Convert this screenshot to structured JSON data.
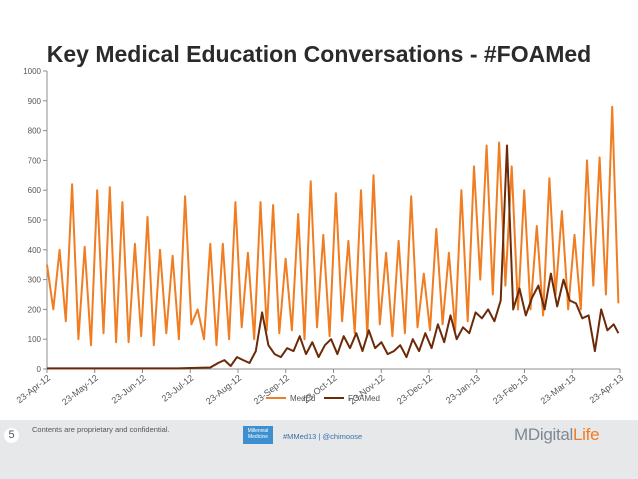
{
  "slide": {
    "title": "Key Medical Education Conversations - #FOAMed",
    "slide_number": "5"
  },
  "footer": {
    "disclaimer": "Contents are proprietary and confidential.",
    "badge_text": "Millennial Medicine",
    "hashtag": "#MMed13 | @chimoose",
    "logo_main": "MDigital",
    "logo_accent": "Life"
  },
  "chart_data": {
    "type": "line",
    "title": "Key Medical Education Conversations - #FOAMed",
    "xlabel": "",
    "ylabel": "",
    "ylim": [
      0,
      1000
    ],
    "yticks": [
      0,
      100,
      200,
      300,
      400,
      500,
      600,
      700,
      800,
      900,
      1000
    ],
    "x_range": [
      "2012-04-23",
      "2013-04-23"
    ],
    "x_tick_labels": [
      "23-Apr-12",
      "23-May-12",
      "23-Jun-12",
      "23-Jul-12",
      "23-Aug-12",
      "23-Sep-12",
      "23-Oct-12",
      "23-Nov-12",
      "23-Dec-12",
      "23-Jan-13",
      "23-Feb-13",
      "23-Mar-13",
      "23-Apr-13"
    ],
    "grid": false,
    "legend": "bottom",
    "series": [
      {
        "name": "MedEd",
        "color": "#f07d22",
        "x": [
          "2012-04-23",
          "2012-04-27",
          "2012-05-01",
          "2012-05-05",
          "2012-05-09",
          "2012-05-13",
          "2012-05-17",
          "2012-05-21",
          "2012-05-25",
          "2012-05-29",
          "2012-06-02",
          "2012-06-06",
          "2012-06-10",
          "2012-06-14",
          "2012-06-18",
          "2012-06-22",
          "2012-06-26",
          "2012-06-30",
          "2012-07-04",
          "2012-07-08",
          "2012-07-12",
          "2012-07-16",
          "2012-07-20",
          "2012-07-24",
          "2012-07-28",
          "2012-08-01",
          "2012-08-05",
          "2012-08-09",
          "2012-08-13",
          "2012-08-17",
          "2012-08-21",
          "2012-08-25",
          "2012-08-29",
          "2012-09-02",
          "2012-09-06",
          "2012-09-10",
          "2012-09-14",
          "2012-09-18",
          "2012-09-22",
          "2012-09-26",
          "2012-09-30",
          "2012-10-04",
          "2012-10-08",
          "2012-10-12",
          "2012-10-16",
          "2012-10-20",
          "2012-10-24",
          "2012-10-28",
          "2012-11-01",
          "2012-11-05",
          "2012-11-09",
          "2012-11-13",
          "2012-11-17",
          "2012-11-21",
          "2012-11-25",
          "2012-11-29",
          "2012-12-03",
          "2012-12-07",
          "2012-12-11",
          "2012-12-15",
          "2012-12-19",
          "2012-12-23",
          "2012-12-27",
          "2012-12-31",
          "2013-01-04",
          "2013-01-08",
          "2013-01-12",
          "2013-01-16",
          "2013-01-20",
          "2013-01-24",
          "2013-01-28",
          "2013-02-01",
          "2013-02-05",
          "2013-02-09",
          "2013-02-13",
          "2013-02-17",
          "2013-02-21",
          "2013-02-25",
          "2013-03-01",
          "2013-03-05",
          "2013-03-09",
          "2013-03-13",
          "2013-03-17",
          "2013-03-21",
          "2013-03-25",
          "2013-03-29",
          "2013-04-02",
          "2013-04-06",
          "2013-04-10",
          "2013-04-14",
          "2013-04-18",
          "2013-04-22"
        ],
        "values": [
          350,
          200,
          400,
          160,
          620,
          100,
          410,
          80,
          600,
          120,
          610,
          90,
          560,
          90,
          420,
          110,
          510,
          80,
          400,
          120,
          380,
          100,
          580,
          150,
          200,
          100,
          420,
          80,
          420,
          100,
          560,
          140,
          390,
          100,
          560,
          130,
          550,
          120,
          370,
          130,
          520,
          100,
          630,
          140,
          450,
          110,
          590,
          160,
          430,
          120,
          600,
          110,
          650,
          150,
          390,
          110,
          430,
          120,
          580,
          140,
          320,
          130,
          470,
          150,
          390,
          130,
          600,
          160,
          680,
          300,
          750,
          250,
          760,
          280,
          680,
          200,
          600,
          200,
          480,
          180,
          640,
          250,
          530,
          200,
          450,
          200,
          700,
          280,
          710,
          250,
          880,
          220
        ]
      },
      {
        "name": "FOAMed",
        "color": "#6b2a08",
        "x": [
          "2012-04-23",
          "2012-05-15",
          "2012-06-15",
          "2012-07-15",
          "2012-08-05",
          "2012-08-10",
          "2012-08-14",
          "2012-08-18",
          "2012-08-22",
          "2012-08-26",
          "2012-08-30",
          "2012-09-03",
          "2012-09-07",
          "2012-09-11",
          "2012-09-15",
          "2012-09-19",
          "2012-09-23",
          "2012-09-27",
          "2012-10-01",
          "2012-10-05",
          "2012-10-09",
          "2012-10-13",
          "2012-10-17",
          "2012-10-21",
          "2012-10-25",
          "2012-10-29",
          "2012-11-02",
          "2012-11-06",
          "2012-11-10",
          "2012-11-14",
          "2012-11-18",
          "2012-11-22",
          "2012-11-26",
          "2012-11-30",
          "2012-12-04",
          "2012-12-08",
          "2012-12-12",
          "2012-12-16",
          "2012-12-20",
          "2012-12-24",
          "2012-12-28",
          "2013-01-01",
          "2013-01-05",
          "2013-01-09",
          "2013-01-13",
          "2013-01-17",
          "2013-01-21",
          "2013-01-25",
          "2013-01-29",
          "2013-02-02",
          "2013-02-06",
          "2013-02-10",
          "2013-02-14",
          "2013-02-18",
          "2013-02-22",
          "2013-02-26",
          "2013-03-02",
          "2013-03-06",
          "2013-03-10",
          "2013-03-14",
          "2013-03-18",
          "2013-03-22",
          "2013-03-26",
          "2013-03-30",
          "2013-04-03",
          "2013-04-07",
          "2013-04-11",
          "2013-04-15",
          "2013-04-19",
          "2013-04-22"
        ],
        "values": [
          2,
          2,
          2,
          2,
          5,
          20,
          30,
          10,
          40,
          30,
          20,
          60,
          190,
          80,
          50,
          40,
          70,
          60,
          110,
          50,
          90,
          40,
          80,
          100,
          50,
          110,
          70,
          120,
          60,
          130,
          70,
          90,
          50,
          60,
          80,
          40,
          100,
          60,
          120,
          70,
          150,
          90,
          180,
          100,
          140,
          120,
          190,
          170,
          200,
          160,
          230,
          750,
          200,
          270,
          180,
          240,
          280,
          200,
          320,
          210,
          300,
          230,
          220,
          170,
          180,
          60,
          200,
          130,
          150,
          120
        ]
      }
    ]
  }
}
